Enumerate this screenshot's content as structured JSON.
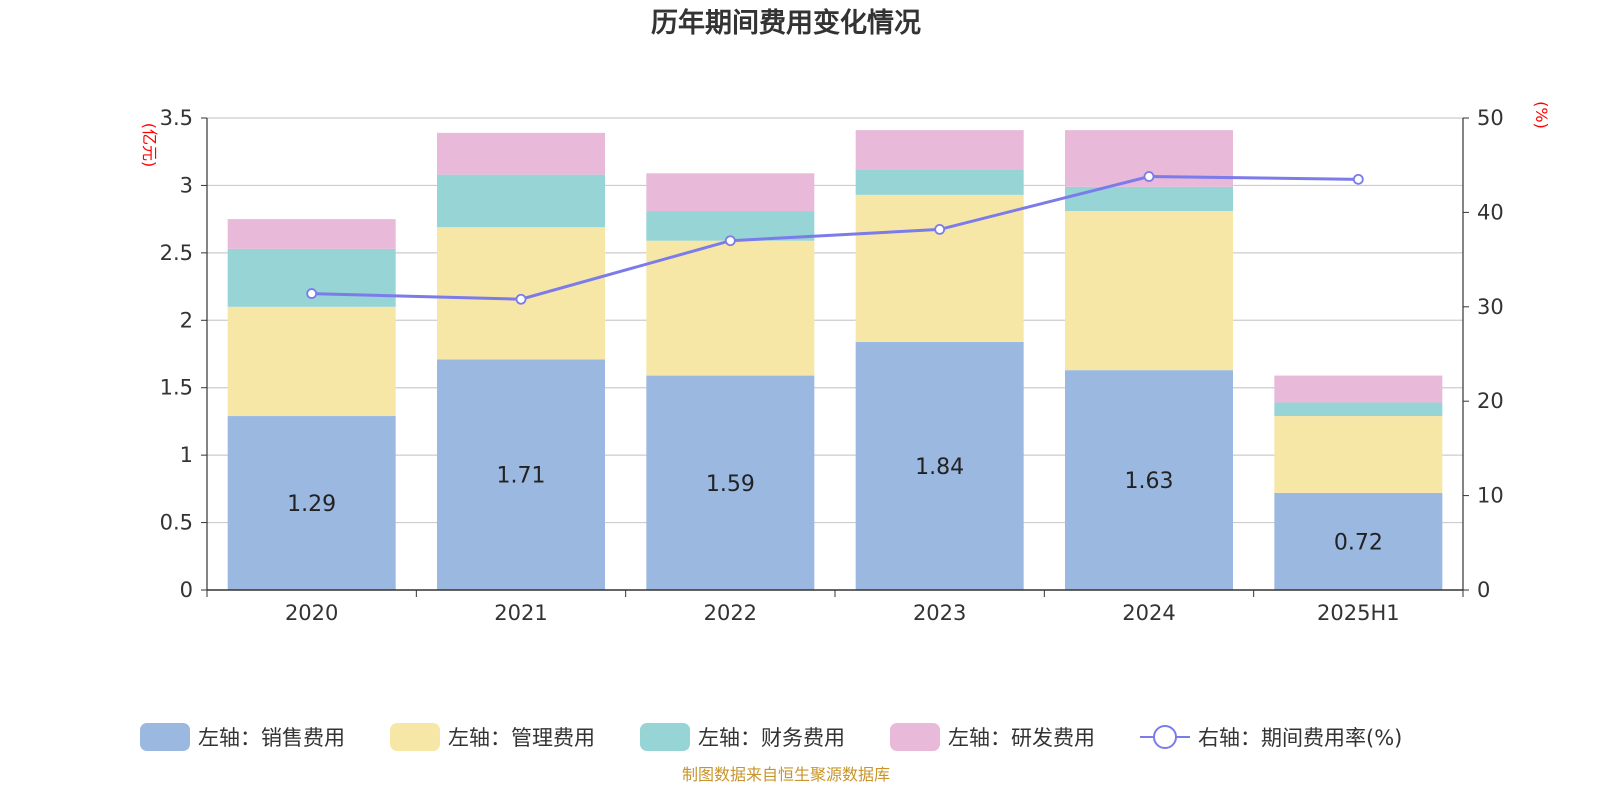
{
  "chart_data": {
    "type": "bar",
    "title": "历年期间费用变化情况",
    "categories": [
      "2020",
      "2021",
      "2022",
      "2023",
      "2024",
      "2025H1"
    ],
    "left_axis": {
      "unit_label": "(亿元)",
      "ylim": [
        0,
        3.5
      ],
      "ticks": [
        "0",
        "0.5",
        "1",
        "1.5",
        "2",
        "2.5",
        "3",
        "3.5"
      ]
    },
    "right_axis": {
      "unit_label": "(%)",
      "ylim": [
        0,
        50
      ],
      "ticks": [
        "0",
        "10",
        "20",
        "30",
        "40",
        "50"
      ]
    },
    "stacked": true,
    "series": [
      {
        "name": "左轴：销售费用",
        "color": "#9bb8e1",
        "values": [
          1.29,
          1.71,
          1.59,
          1.84,
          1.63,
          0.72
        ],
        "labels": [
          "1.29",
          "1.71",
          "1.59",
          "1.84",
          "1.63",
          "0.72"
        ]
      },
      {
        "name": "左轴：管理费用",
        "color": "#f7e7a7",
        "values": [
          0.81,
          0.98,
          1.0,
          1.09,
          1.18,
          0.57
        ]
      },
      {
        "name": "左轴：财务费用",
        "color": "#97d4d5",
        "values": [
          0.43,
          0.39,
          0.22,
          0.19,
          0.18,
          0.1
        ]
      },
      {
        "name": "左轴：研发费用",
        "color": "#e8b9d9",
        "values": [
          0.22,
          0.31,
          0.28,
          0.29,
          0.42,
          0.2
        ]
      }
    ],
    "line_series": {
      "name": "右轴：期间费用率(%)",
      "color": "#7b7bea",
      "axis": "right",
      "values": [
        31.4,
        30.8,
        37.0,
        38.2,
        43.8,
        43.5
      ]
    },
    "grid": true,
    "legend_position": "bottom"
  },
  "source_note": "制图数据来自恒生聚源数据库"
}
